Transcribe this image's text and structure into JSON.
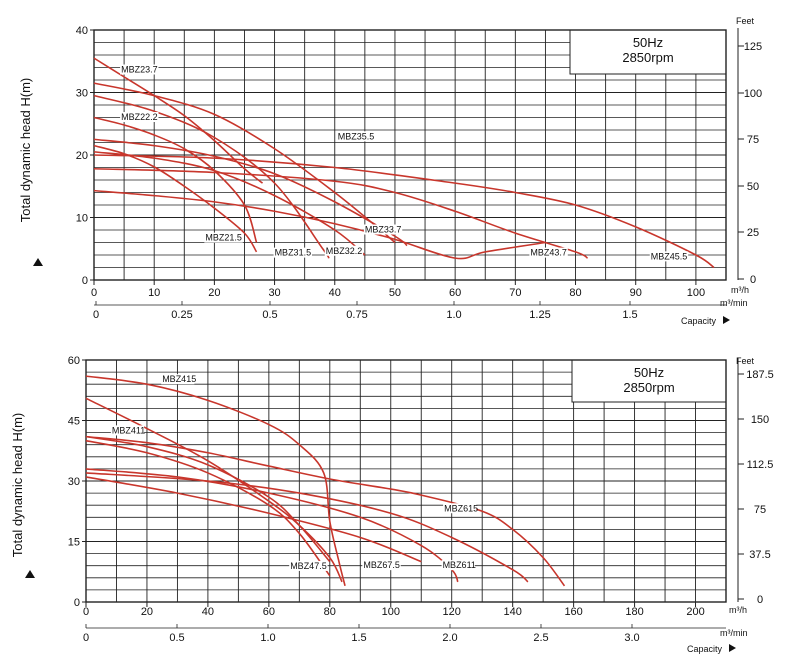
{
  "colors": {
    "curve": "#c8362c",
    "grid": "#222222",
    "background": "#ffffff"
  },
  "chart_data": [
    {
      "type": "line",
      "info_box": {
        "line1": "50Hz",
        "line2": "2850rpm"
      },
      "ylabel": "Total dynamic head H(m)",
      "ylim": [
        0,
        40
      ],
      "xlim": [
        0,
        105
      ],
      "x_ticks": [
        "0",
        "10",
        "20",
        "30",
        "40",
        "50",
        "60",
        "70",
        "80",
        "90",
        "100"
      ],
      "x_tick_values": [
        0,
        10,
        20,
        30,
        40,
        50,
        60,
        70,
        80,
        90,
        100
      ],
      "x_unit": "m³/h",
      "y_ticks": [
        "0",
        "10",
        "20",
        "30",
        "40"
      ],
      "y_tick_values": [
        0,
        10,
        20,
        30,
        40
      ],
      "right_axis": {
        "title": "Feet",
        "ticks": [
          "0",
          "25",
          "50",
          "75",
          "100",
          "125"
        ]
      },
      "x2_ticks": [
        "0",
        "0.25",
        "0.5",
        "0.75",
        "1.0",
        "1.25",
        "1.5"
      ],
      "x2_unit": "m³/min",
      "capacity_label": "Capacity",
      "series": [
        {
          "name": "MBZ23.7",
          "x": [
            0,
            5,
            10,
            15,
            20,
            25,
            28
          ],
          "y": [
            35.5,
            32.5,
            29.5,
            26.3,
            22.3,
            17.8,
            15.5
          ]
        },
        {
          "name": "MBZ22.2",
          "x": [
            0,
            5,
            10,
            15,
            20,
            25,
            27
          ],
          "y": [
            26,
            24.8,
            23.2,
            21,
            17.5,
            12,
            6
          ]
        },
        {
          "name": "MBZ21.5",
          "x": [
            0,
            5,
            10,
            15,
            20,
            25,
            27
          ],
          "y": [
            21.5,
            20.2,
            18.1,
            15,
            11.5,
            7.5,
            4.5
          ]
        },
        {
          "name": "MBZ35.5",
          "x": [
            0,
            10,
            20,
            30,
            40,
            47,
            50
          ],
          "y": [
            31.5,
            29.5,
            26.5,
            21,
            14,
            8.5,
            6
          ]
        },
        {
          "name": "MBZ31.5",
          "x": [
            0,
            10,
            20,
            30,
            38,
            39
          ],
          "y": [
            29.5,
            27,
            22.8,
            15.5,
            5,
            3.5
          ]
        },
        {
          "name": "MBZ32.2",
          "x": [
            0,
            10,
            20,
            30,
            40,
            45
          ],
          "y": [
            20.5,
            19.5,
            17.5,
            13.5,
            8,
            4
          ]
        },
        {
          "name": "MBZ33.7",
          "x": [
            0,
            10,
            20,
            30,
            40,
            50,
            52
          ],
          "y": [
            22.5,
            21.5,
            19.8,
            17,
            12.5,
            7,
            5.5
          ]
        },
        {
          "name": "MBZ43.7",
          "x": [
            0,
            20,
            40,
            50,
            60,
            70,
            80,
            82
          ],
          "y": [
            17.8,
            17.2,
            15.8,
            14,
            11,
            7.5,
            4.5,
            3.5
          ]
        },
        {
          "name": "MBZ45.5",
          "x": [
            0,
            20,
            40,
            60,
            70,
            80,
            90,
            100,
            103
          ],
          "y": [
            20,
            19.5,
            18,
            15.5,
            14,
            12,
            8.5,
            4,
            2
          ]
        },
        {
          "name": "",
          "x": [
            0,
            10,
            20,
            30,
            40,
            50,
            60,
            65,
            75
          ],
          "y": [
            14.3,
            13.5,
            12.5,
            11,
            9,
            6.5,
            3.5,
            4.5,
            6
          ]
        }
      ],
      "labels": [
        {
          "text": "MBZ23.7",
          "x": 4.5,
          "y": 33.2
        },
        {
          "text": "MBZ22.2",
          "x": 4.5,
          "y": 25.6
        },
        {
          "text": "MBZ35.5",
          "x": 40.5,
          "y": 22.5
        },
        {
          "text": "MBZ33.7",
          "x": 45,
          "y": 7.6
        },
        {
          "text": "MBZ21.5",
          "x": 18.5,
          "y": 6.3
        },
        {
          "text": "MBZ31.5",
          "x": 30,
          "y": 3.9
        },
        {
          "text": "MBZ32.2",
          "x": 38.5,
          "y": 4.2
        },
        {
          "text": "MBZ43.7",
          "x": 72.5,
          "y": 3.9
        },
        {
          "text": "MBZ45.5",
          "x": 92.5,
          "y": 3.3
        }
      ]
    },
    {
      "type": "line",
      "info_box": {
        "line1": "50Hz",
        "line2": "2850rpm"
      },
      "ylabel": "Total dynamic head H(m)",
      "ylim": [
        0,
        60
      ],
      "xlim": [
        0,
        210
      ],
      "x_ticks": [
        "0",
        "20",
        "40",
        "60",
        "80",
        "100",
        "120",
        "140",
        "160",
        "180",
        "200"
      ],
      "x_tick_values": [
        0,
        20,
        40,
        60,
        80,
        100,
        120,
        140,
        160,
        180,
        200
      ],
      "x_unit": "m³/h",
      "y_ticks": [
        "0",
        "15",
        "30",
        "45",
        "60"
      ],
      "y_tick_values": [
        0,
        15,
        30,
        45,
        60
      ],
      "right_axis": {
        "title": "Feet",
        "ticks": [
          "0",
          "37.5",
          "75",
          "112.5",
          "150",
          "187.5"
        ]
      },
      "x2_ticks": [
        "0",
        "0.5",
        "1.0",
        "1.5",
        "2.0",
        "2.5",
        "3.0"
      ],
      "x2_unit": "m³/min",
      "capacity_label": "Capacity",
      "series": [
        {
          "name": "MBZ415",
          "x": [
            0,
            20,
            40,
            60,
            70,
            78,
            80,
            83,
            85
          ],
          "y": [
            56,
            54,
            50,
            44,
            39,
            32,
            20,
            10,
            4
          ]
        },
        {
          "name": "MBZ411",
          "x": [
            0,
            20,
            40,
            60,
            70,
            80
          ],
          "y": [
            41,
            38.5,
            34,
            26,
            19,
            10
          ]
        },
        {
          "name": "MBZ47.5",
          "x": [
            0,
            20,
            40,
            60,
            70,
            80
          ],
          "y": [
            40,
            37,
            32,
            24,
            17,
            6.5
          ]
        },
        {
          "name": "",
          "x": [
            0,
            20,
            40,
            60,
            70,
            80,
            84
          ],
          "y": [
            50.5,
            43,
            35,
            25,
            19,
            11,
            5
          ]
        },
        {
          "name": "MBZ67.5",
          "x": [
            0,
            30,
            60,
            90,
            110
          ],
          "y": [
            31,
            27,
            22,
            16,
            10
          ]
        },
        {
          "name": "MBZ611",
          "x": [
            0,
            30,
            60,
            90,
            110,
            120,
            122
          ],
          "y": [
            33,
            31,
            27,
            21,
            14,
            8,
            5
          ]
        },
        {
          "name": "MBZ615",
          "x": [
            0,
            20,
            40,
            60,
            80,
            100,
            110,
            130,
            140,
            150,
            157
          ],
          "y": [
            41,
            39.5,
            37,
            33.7,
            30.5,
            28,
            26.5,
            22.5,
            18,
            11,
            4
          ]
        },
        {
          "name": "",
          "x": [
            0,
            40,
            70,
            100,
            120,
            140,
            145
          ],
          "y": [
            32,
            30,
            27,
            22,
            16,
            8,
            5
          ]
        }
      ],
      "labels": [
        {
          "text": "MBZ415",
          "x": 25,
          "y": 54.5
        },
        {
          "text": "MBZ411",
          "x": 8.5,
          "y": 41.8
        },
        {
          "text": "MBZ615",
          "x": 117.5,
          "y": 22.5
        },
        {
          "text": "MBZ47.5",
          "x": 67,
          "y": 8.2
        },
        {
          "text": "MBZ67.5",
          "x": 91,
          "y": 8.4
        },
        {
          "text": "MBZ611",
          "x": 117,
          "y": 8.4
        }
      ]
    }
  ]
}
